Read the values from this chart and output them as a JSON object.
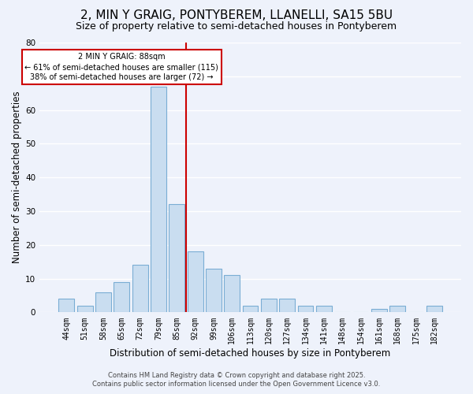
{
  "title": "2, MIN Y GRAIG, PONTYBEREM, LLANELLI, SA15 5BU",
  "subtitle": "Size of property relative to semi-detached houses in Pontyberem",
  "xlabel": "Distribution of semi-detached houses by size in Pontyberem",
  "ylabel": "Number of semi-detached properties",
  "categories": [
    "44sqm",
    "51sqm",
    "58sqm",
    "65sqm",
    "72sqm",
    "79sqm",
    "85sqm",
    "92sqm",
    "99sqm",
    "106sqm",
    "113sqm",
    "120sqm",
    "127sqm",
    "134sqm",
    "141sqm",
    "148sqm",
    "154sqm",
    "161sqm",
    "168sqm",
    "175sqm",
    "182sqm"
  ],
  "values": [
    4,
    2,
    6,
    9,
    14,
    67,
    32,
    18,
    13,
    11,
    2,
    4,
    4,
    2,
    2,
    0,
    0,
    1,
    2,
    0,
    2
  ],
  "bar_color": "#c9ddf0",
  "bar_edge_color": "#7aadd4",
  "vline_x_idx": 6.5,
  "vline_color": "#cc0000",
  "ylim": [
    0,
    80
  ],
  "annotation_title": "2 MIN Y GRAIG: 88sqm",
  "annotation_line1": "← 61% of semi-detached houses are smaller (115)",
  "annotation_line2": "38% of semi-detached houses are larger (72) →",
  "annotation_box_color": "#ffffff",
  "annotation_box_edge": "#cc0000",
  "footer1": "Contains HM Land Registry data © Crown copyright and database right 2025.",
  "footer2": "Contains public sector information licensed under the Open Government Licence v3.0.",
  "background_color": "#eef2fb",
  "grid_color": "#ffffff",
  "title_fontsize": 11,
  "subtitle_fontsize": 9,
  "axis_label_fontsize": 8.5,
  "tick_fontsize": 7,
  "footer_fontsize": 6
}
